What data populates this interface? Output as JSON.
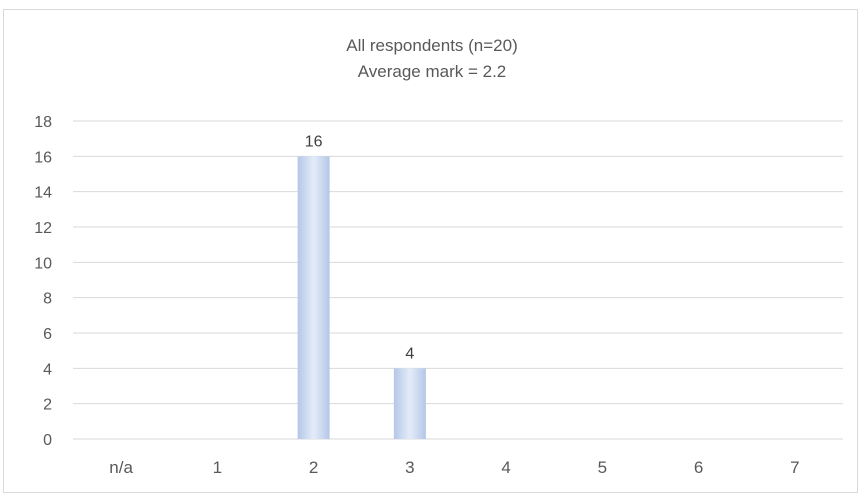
{
  "chart_data": {
    "type": "bar",
    "title": "All respondents (n=20)",
    "subtitle": "Average mark = 2.2",
    "categories": [
      "n/a",
      "1",
      "2",
      "3",
      "4",
      "5",
      "6",
      "7"
    ],
    "values": [
      0,
      0,
      16,
      4,
      0,
      0,
      0,
      0
    ],
    "data_labels": [
      "",
      "",
      "16",
      "4",
      "",
      "",
      "",
      ""
    ],
    "ylim": [
      0,
      18
    ],
    "yticks": [
      0,
      2,
      4,
      6,
      8,
      10,
      12,
      14,
      16,
      18
    ],
    "xlabel": "",
    "ylabel": "",
    "grid": true,
    "legend": "none",
    "colors": {
      "bar_edge": "#b4c7e7",
      "bar_center": "#e4ecf8",
      "grid": "#d9d9d9",
      "tick_text": "#595959",
      "label_text": "#404040"
    }
  }
}
